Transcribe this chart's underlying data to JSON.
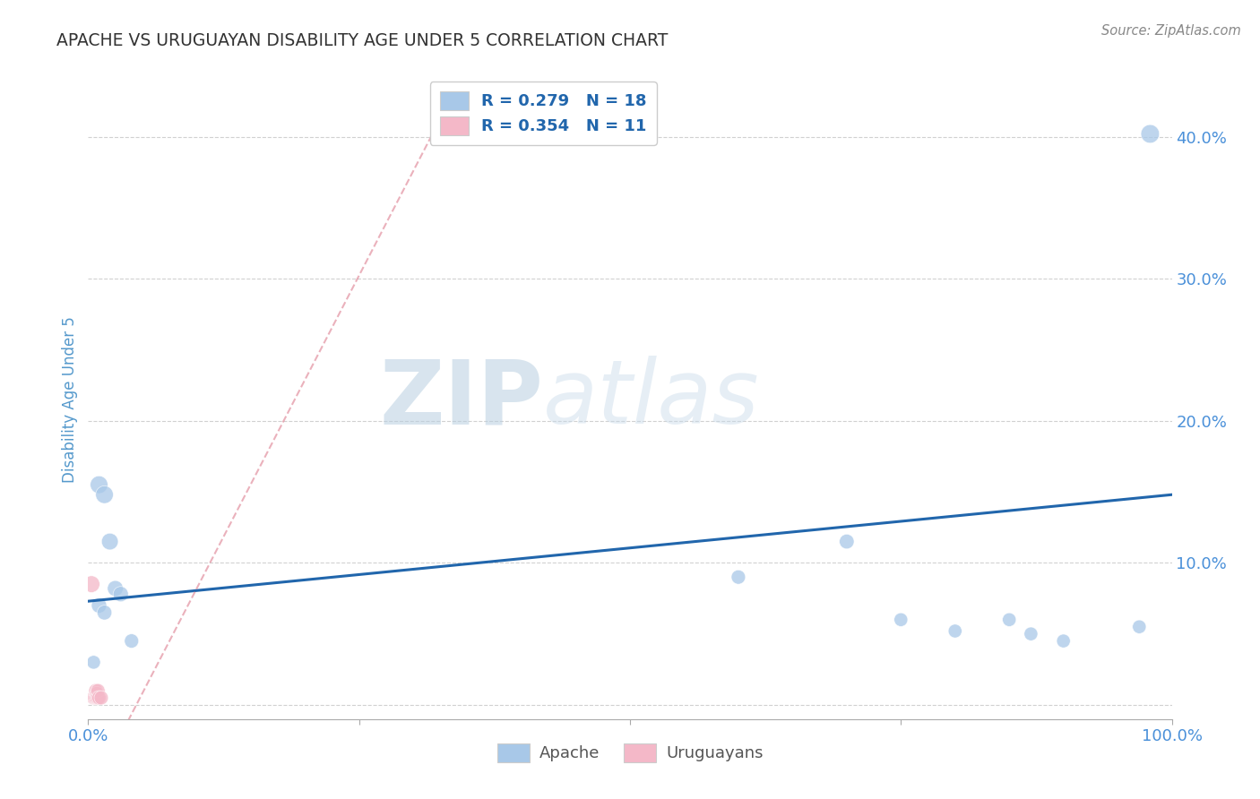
{
  "title": "APACHE VS URUGUAYAN DISABILITY AGE UNDER 5 CORRELATION CHART",
  "source": "Source: ZipAtlas.com",
  "ylabel": "Disability Age Under 5",
  "xlim": [
    0,
    1.0
  ],
  "ylim": [
    -0.01,
    0.44
  ],
  "yticks": [
    0.0,
    0.1,
    0.2,
    0.3,
    0.4
  ],
  "xticks": [
    0.0,
    0.25,
    0.5,
    0.75,
    1.0
  ],
  "apache_x": [
    0.01,
    0.015,
    0.02,
    0.025,
    0.03,
    0.01,
    0.015,
    0.005,
    0.04,
    0.6,
    0.7,
    0.75,
    0.8,
    0.85,
    0.87,
    0.9,
    0.97,
    0.98
  ],
  "apache_y": [
    0.155,
    0.148,
    0.115,
    0.082,
    0.078,
    0.07,
    0.065,
    0.03,
    0.045,
    0.09,
    0.115,
    0.06,
    0.052,
    0.06,
    0.05,
    0.045,
    0.055,
    0.402
  ],
  "uruguayan_x": [
    0.003,
    0.005,
    0.006,
    0.007,
    0.007,
    0.008,
    0.008,
    0.009,
    0.009,
    0.01,
    0.012
  ],
  "uruguayan_y": [
    0.085,
    0.005,
    0.005,
    0.005,
    0.01,
    0.008,
    0.005,
    0.005,
    0.01,
    0.005,
    0.005
  ],
  "apache_color": "#a8c8e8",
  "uruguayan_color": "#f4b8c8",
  "trend_apache_color": "#2166ac",
  "trend_uruguayan_color": "#e08898",
  "R_apache": 0.279,
  "N_apache": 18,
  "R_uruguayan": 0.354,
  "N_uruguayan": 11,
  "watermark_zip": "ZIP",
  "watermark_atlas": "atlas",
  "background_color": "#ffffff",
  "grid_color": "#cccccc",
  "title_color": "#333333",
  "tick_label_color": "#4a90d9",
  "axis_label_color": "#5599cc"
}
